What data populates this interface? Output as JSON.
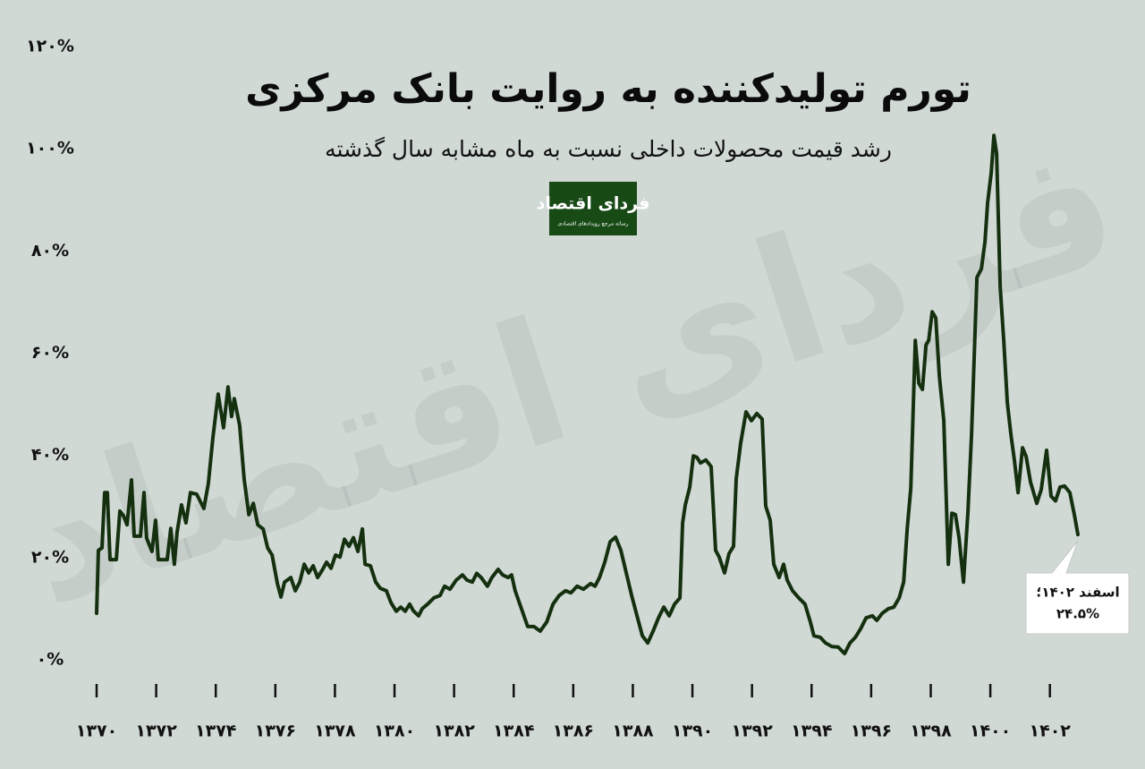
{
  "chart_data": {
    "type": "line",
    "title": "تورم تولیدکننده به روایت بانک مرکزی",
    "subtitle": "رشد قیمت محصولات داخلی نسبت به ماه مشابه سال گذشته",
    "logo": {
      "name": "فردای اقتصاد",
      "tagline": "رسانه مرجع رویدادهای اقتصادی"
    },
    "watermark": "فردای اقتصاد",
    "annotation": [
      "اسفند ۱۴۰۲؛",
      "۲۴.۵%"
    ],
    "grid": false,
    "xlim": [
      1370,
      1403
    ],
    "ylim": [
      0,
      120
    ],
    "xticks": [
      {
        "value": 1370,
        "label": "۱۳۷۰"
      },
      {
        "value": 1372,
        "label": "۱۳۷۲"
      },
      {
        "value": 1374,
        "label": "۱۳۷۴"
      },
      {
        "value": 1376,
        "label": "۱۳۷۶"
      },
      {
        "value": 1378,
        "label": "۱۳۷۸"
      },
      {
        "value": 1380,
        "label": "۱۳۸۰"
      },
      {
        "value": 1382,
        "label": "۱۳۸۲"
      },
      {
        "value": 1384,
        "label": "۱۳۸۴"
      },
      {
        "value": 1386,
        "label": "۱۳۸۶"
      },
      {
        "value": 1388,
        "label": "۱۳۸۸"
      },
      {
        "value": 1390,
        "label": "۱۳۹۰"
      },
      {
        "value": 1392,
        "label": "۱۳۹۲"
      },
      {
        "value": 1394,
        "label": "۱۳۹۴"
      },
      {
        "value": 1396,
        "label": "۱۳۹۶"
      },
      {
        "value": 1398,
        "label": "۱۳۹۸"
      },
      {
        "value": 1400,
        "label": "۱۴۰۰"
      },
      {
        "value": 1402,
        "label": "۱۴۰۲"
      }
    ],
    "yticks": [
      {
        "value": 0,
        "label": "۰%"
      },
      {
        "value": 20,
        "label": "۲۰%"
      },
      {
        "value": 40,
        "label": "۴۰%"
      },
      {
        "value": 60,
        "label": "۶۰%"
      },
      {
        "value": 80,
        "label": "۸۰%"
      },
      {
        "value": 100,
        "label": "۱۰۰%"
      },
      {
        "value": 120,
        "label": "۱۲۰%"
      }
    ],
    "x": [
      1370.0,
      1370.06,
      1370.18,
      1370.27,
      1370.36,
      1370.45,
      1370.66,
      1370.78,
      1370.9,
      1371.02,
      1371.17,
      1371.26,
      1371.47,
      1371.59,
      1371.68,
      1371.86,
      1371.98,
      1372.07,
      1372.37,
      1372.49,
      1372.61,
      1372.7,
      1372.85,
      1373.0,
      1373.15,
      1373.36,
      1373.6,
      1373.75,
      1373.9,
      1374.08,
      1374.26,
      1374.41,
      1374.53,
      1374.62,
      1374.8,
      1374.95,
      1375.11,
      1375.26,
      1375.41,
      1375.59,
      1375.74,
      1375.89,
      1376.07,
      1376.19,
      1376.31,
      1376.52,
      1376.67,
      1376.82,
      1376.97,
      1377.12,
      1377.27,
      1377.42,
      1377.57,
      1377.72,
      1377.87,
      1378.02,
      1378.17,
      1378.32,
      1378.47,
      1378.62,
      1378.77,
      1378.92,
      1379.01,
      1379.19,
      1379.37,
      1379.52,
      1379.73,
      1379.88,
      1380.06,
      1380.21,
      1380.36,
      1380.51,
      1380.63,
      1380.81,
      1380.93,
      1381.11,
      1381.32,
      1381.53,
      1381.68,
      1381.86,
      1382.07,
      1382.28,
      1382.43,
      1382.61,
      1382.76,
      1382.91,
      1383.12,
      1383.27,
      1383.48,
      1383.63,
      1383.81,
      1383.93,
      1384.05,
      1384.26,
      1384.47,
      1384.68,
      1384.89,
      1385.11,
      1385.32,
      1385.53,
      1385.74,
      1385.92,
      1386.13,
      1386.34,
      1386.58,
      1386.73,
      1386.88,
      1387.06,
      1387.24,
      1387.42,
      1387.6,
      1387.78,
      1387.96,
      1388.14,
      1388.32,
      1388.5,
      1388.68,
      1388.86,
      1389.04,
      1389.22,
      1389.4,
      1389.58,
      1389.67,
      1389.76,
      1389.91,
      1390.03,
      1390.15,
      1390.27,
      1390.45,
      1390.63,
      1390.78,
      1390.9,
      1391.08,
      1391.23,
      1391.38,
      1391.47,
      1391.62,
      1391.8,
      1391.98,
      1392.16,
      1392.34,
      1392.46,
      1392.61,
      1392.73,
      1392.91,
      1393.06,
      1393.18,
      1393.36,
      1393.57,
      1393.78,
      1393.96,
      1394.08,
      1394.29,
      1394.47,
      1394.68,
      1394.89,
      1395.11,
      1395.29,
      1395.47,
      1395.65,
      1395.83,
      1396.04,
      1396.19,
      1396.37,
      1396.58,
      1396.76,
      1396.94,
      1397.09,
      1397.21,
      1397.33,
      1397.48,
      1397.6,
      1397.72,
      1397.84,
      1397.93,
      1398.05,
      1398.17,
      1398.29,
      1398.44,
      1398.59,
      1398.71,
      1398.83,
      1398.95,
      1399.1,
      1399.25,
      1399.37,
      1399.55,
      1399.7,
      1399.82,
      1399.91,
      1400.03,
      1400.12,
      1400.21,
      1400.33,
      1400.45,
      1400.57,
      1400.69,
      1400.81,
      1400.93,
      1401.08,
      1401.2,
      1401.35,
      1401.56,
      1401.71,
      1401.89,
      1402.04,
      1402.19,
      1402.34,
      1402.49,
      1402.67,
      1402.82,
      1402.94
    ],
    "series": [
      {
        "color": "#14300f",
        "values": [
          9.1,
          21.4,
          21.9,
          32.7,
          32.7,
          19.6,
          19.6,
          29.1,
          28.2,
          26.4,
          35.2,
          24.2,
          24.2,
          32.7,
          23.8,
          21.2,
          27.3,
          19.6,
          19.6,
          25.7,
          18.7,
          24.9,
          30.3,
          26.8,
          32.7,
          32.4,
          29.6,
          34.5,
          43.3,
          52.0,
          45.4,
          53.4,
          47.6,
          51.1,
          45.9,
          35.4,
          28.4,
          30.6,
          26.4,
          25.6,
          21.9,
          20.5,
          14.9,
          12.3,
          15.2,
          16.1,
          13.5,
          15.2,
          18.7,
          17.0,
          18.4,
          16.1,
          17.5,
          19.1,
          17.9,
          20.5,
          20.1,
          23.6,
          22.2,
          23.9,
          21.2,
          25.6,
          18.7,
          18.4,
          15.2,
          14.0,
          13.5,
          11.2,
          9.5,
          10.3,
          9.5,
          10.9,
          9.6,
          8.6,
          10.0,
          10.9,
          12.1,
          12.6,
          14.4,
          13.8,
          15.6,
          16.6,
          15.6,
          15.2,
          16.9,
          16.1,
          14.4,
          16.1,
          17.7,
          16.6,
          16.1,
          16.6,
          13.5,
          10.0,
          6.5,
          6.5,
          5.6,
          7.4,
          10.9,
          12.6,
          13.5,
          13.1,
          14.4,
          13.8,
          14.9,
          14.4,
          16.1,
          19.1,
          23.1,
          24.0,
          21.4,
          17.0,
          12.6,
          8.6,
          4.7,
          3.3,
          5.6,
          8.2,
          10.3,
          8.6,
          10.9,
          12.1,
          26.8,
          30.3,
          33.8,
          39.9,
          39.6,
          38.5,
          39.1,
          37.8,
          21.4,
          20.1,
          17.0,
          20.8,
          22.2,
          35.4,
          42.4,
          48.5,
          46.8,
          48.2,
          47.1,
          30.1,
          27.3,
          18.7,
          16.1,
          18.7,
          15.6,
          13.5,
          12.1,
          10.9,
          7.4,
          4.7,
          4.4,
          3.3,
          2.6,
          2.5,
          1.2,
          3.3,
          4.4,
          6.1,
          8.2,
          8.6,
          7.7,
          9.1,
          10.0,
          10.3,
          12.1,
          15.2,
          25.7,
          33.6,
          62.5,
          54.1,
          52.9,
          61.6,
          62.5,
          68.1,
          66.9,
          55.5,
          46.8,
          18.7,
          28.7,
          28.4,
          23.9,
          15.2,
          29.1,
          44.1,
          74.8,
          76.5,
          81.8,
          89.5,
          95.3,
          102.6,
          99.1,
          73.0,
          62.5,
          50.3,
          44.1,
          38.9,
          32.7,
          41.5,
          39.8,
          34.8,
          30.6,
          33.3,
          41.0,
          32.0,
          31.1,
          33.8,
          34.0,
          32.7,
          28.4,
          24.5
        ]
      }
    ]
  }
}
